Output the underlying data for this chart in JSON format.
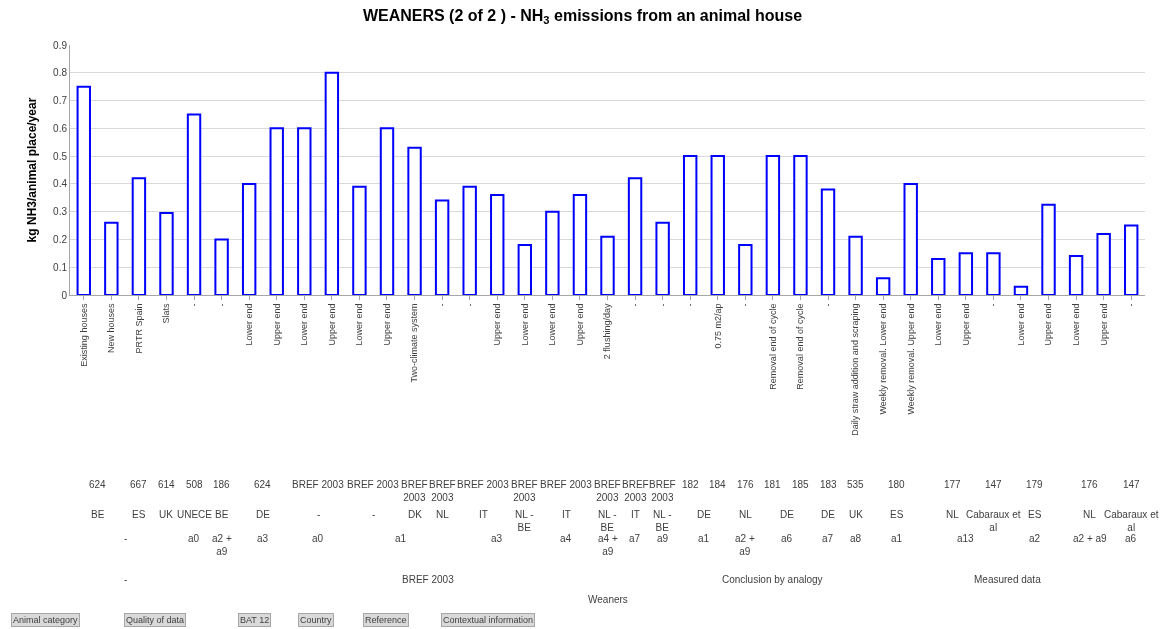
{
  "chart_data": {
    "type": "bar",
    "title": "WEANERS (2 of 2 ) - NH$_{3}$ emissions from an animal house",
    "ylabel": "kg NH3/animal place/year",
    "categories": [
      "Existing houses",
      "New houses",
      "PRTR Spain",
      "Slats",
      "-",
      "-",
      "Lower end",
      "Upper end",
      "Lower end",
      "Upper end",
      "Lower end",
      "Upper end",
      "Two-climate system",
      "-",
      "-",
      "Upper end",
      "Lower end",
      "Lower end",
      "Upper end",
      "2 flushing/day",
      "-",
      "-",
      "-",
      "0.75 m2/ap",
      "-",
      "Removal end of cycle",
      "Removal end of cycle",
      "-",
      "Daily straw addition and scraping",
      "Weekly removal. Lower end",
      "Weekly removal. Upper end",
      "Lower end",
      "Upper end",
      "-",
      "Lower end",
      "Upper end",
      "Lower end",
      "Upper end",
      "-"
    ],
    "values": [
      0.75,
      0.26,
      0.42,
      0.295,
      0.65,
      0.2,
      0.4,
      0.6,
      0.6,
      0.8,
      0.39,
      0.6,
      0.53,
      0.34,
      0.39,
      0.36,
      0.18,
      0.3,
      0.36,
      0.21,
      0.42,
      0.26,
      0.5,
      0.5,
      0.18,
      0.5,
      0.5,
      0.38,
      0.21,
      0.06,
      0.4,
      0.13,
      0.15,
      0.15,
      0.03,
      0.325,
      0.14,
      0.22,
      0.25
    ],
    "color": "#0000ff",
    "ylim": [
      0,
      0.9
    ],
    "yticks": [
      0,
      0.1,
      0.2,
      0.3,
      0.4,
      0.5,
      0.6,
      0.7,
      0.8,
      0.9
    ],
    "grid": "y",
    "annotations": [
      "624",
      "667",
      "614",
      "508",
      "186",
      "624",
      "BREF 2003",
      "BREF 2003",
      "BREF 2003",
      "BREF 2003",
      "BREF 2003",
      "BREF 2003",
      "BREF 2003",
      "BREF 2003",
      "BREF 2003",
      "BREF 2003",
      "182",
      "184",
      "176",
      "181",
      "185",
      "183",
      "535",
      "180",
      "177",
      "147",
      "179",
      "176",
      "147",
      "BE",
      "ES",
      "UK",
      "UNECE",
      "BE",
      "DE",
      "-",
      "-",
      "DK",
      "NL",
      "IT",
      "NL - BE",
      "IT",
      "NL - BE",
      "IT",
      "NL - BE",
      "DE",
      "NL",
      "DE",
      "DE",
      "UK",
      "ES",
      "NL",
      "Cabaraux et al",
      "ES",
      "NL",
      "Cabaraux et al",
      "-",
      "a0",
      "a2 + a9",
      "a3",
      "a0",
      "a1",
      "a3",
      "a4",
      "a4 + a9",
      "a7",
      "a9",
      "a1",
      "a2 + a9",
      "a6",
      "a7",
      "a8",
      "a1",
      "a13",
      "a2",
      "a2 + a9",
      "a6",
      "-",
      "BREF 2003",
      "Conclusion by analogy",
      "Measured data",
      "Weaners",
      "Animal category",
      "Quality of data",
      "BAT 12",
      "Country",
      "Reference",
      "Contextual information"
    ]
  }
}
